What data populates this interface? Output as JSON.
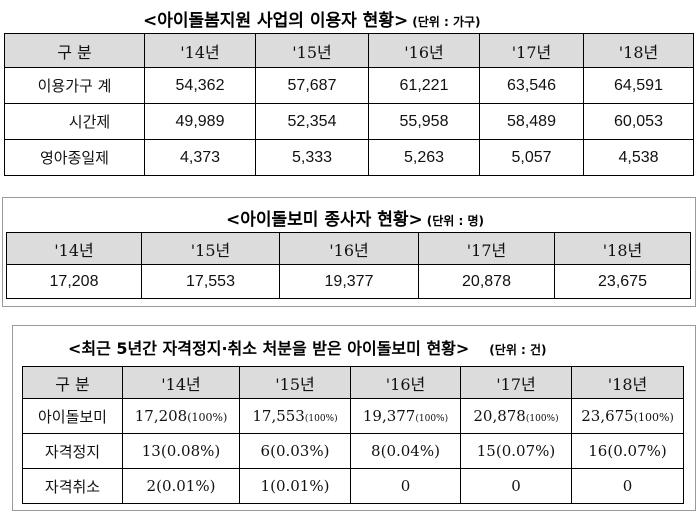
{
  "table1": {
    "title": "<아이돌봄지원 사업의 이용자 현황>",
    "unit": "(단위 : 가구)",
    "headers": [
      "구 분",
      "'14년",
      "'15년",
      "'16년",
      "'17년",
      "'18년"
    ],
    "rows": [
      {
        "label": "이용가구 계",
        "values": [
          "54,362",
          "57,687",
          "61,221",
          "63,546",
          "64,591"
        ]
      },
      {
        "label": "시간제",
        "values": [
          "49,989",
          "52,354",
          "55,958",
          "58,489",
          "60,053"
        ]
      },
      {
        "label": "영아종일제",
        "values": [
          "4,373",
          "5,333",
          "5,263",
          "5,057",
          "4,538"
        ]
      }
    ]
  },
  "table2": {
    "title": "<아이돌보미 종사자 현황>",
    "unit": "(단위 : 명)",
    "headers": [
      "'14년",
      "'15년",
      "'16년",
      "'17년",
      "'18년"
    ],
    "values": [
      "17,208",
      "17,553",
      "19,377",
      "20,878",
      "23,675"
    ]
  },
  "table3": {
    "title": "<최근 5년간 자격정지·취소 처분을 받은 아이돌보미 현황>",
    "unit": "(단위 : 건)",
    "headers": [
      "구 분",
      "'14년",
      "'15년",
      "'16년",
      "'17년",
      "'18년"
    ],
    "rows": [
      {
        "label": "아이돌보미",
        "cells": [
          {
            "num": "17,208",
            "pct": "(100%)"
          },
          {
            "num": "17,553",
            "pct": "(100%)"
          },
          {
            "num": "19,377",
            "pct": "(100%)"
          },
          {
            "num": "20,878",
            "pct": "(100%)"
          },
          {
            "num": "23,675",
            "pct": "(100%)"
          }
        ]
      },
      {
        "label": "자격정지",
        "cells": [
          {
            "num": "13",
            "pct": "(0.08%)"
          },
          {
            "num": "6",
            "pct": "(0.03%)"
          },
          {
            "num": "8",
            "pct": "(0.04%)"
          },
          {
            "num": "15",
            "pct": "(0.07%)"
          },
          {
            "num": "16",
            "pct": "(0.07%)"
          }
        ]
      },
      {
        "label": "자격취소",
        "cells": [
          {
            "num": "2",
            "pct": "(0.01%)"
          },
          {
            "num": "1",
            "pct": "(0.01%)"
          },
          {
            "num": "0",
            "pct": ""
          },
          {
            "num": "0",
            "pct": ""
          },
          {
            "num": "0",
            "pct": ""
          }
        ]
      }
    ]
  }
}
